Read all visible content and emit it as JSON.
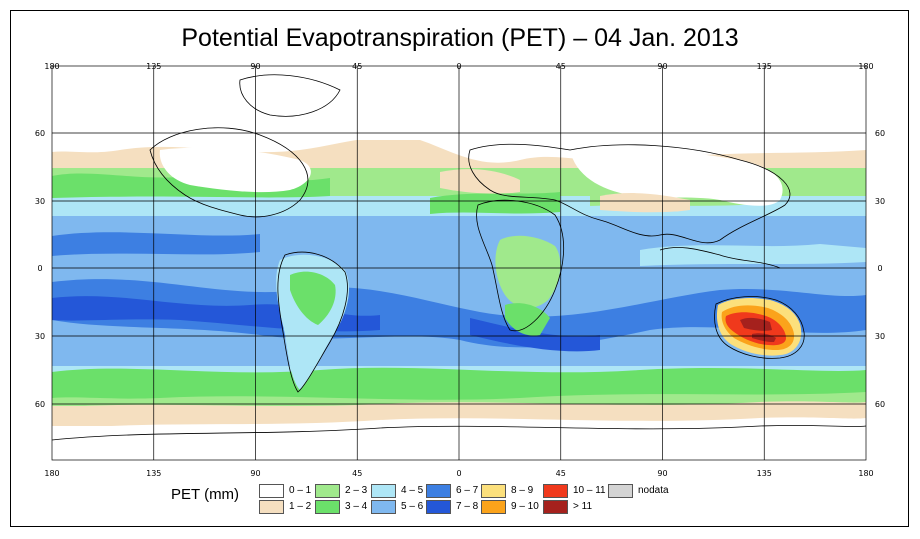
{
  "title": "Potential Evapotranspiration (PET) – 04 Jan. 2013",
  "legend": {
    "title": "PET (mm)",
    "items": [
      {
        "label": "0 – 1",
        "color": "#ffffff"
      },
      {
        "label": "1 – 2",
        "color": "#f5dfc0"
      },
      {
        "label": "2 – 3",
        "color": "#a0e98c"
      },
      {
        "label": "3 – 4",
        "color": "#6be06a"
      },
      {
        "label": "4 – 5",
        "color": "#aee6f6"
      },
      {
        "label": "5 – 6",
        "color": "#7fb8ef"
      },
      {
        "label": "6 – 7",
        "color": "#3d7fe2"
      },
      {
        "label": "7 – 8",
        "color": "#2457d8"
      },
      {
        "label": "8 – 9",
        "color": "#fce07c"
      },
      {
        "label": "9 – 10",
        "color": "#fba31b"
      },
      {
        "label": "10 – 11",
        "color": "#f0391c"
      },
      {
        "label": "> 11",
        "color": "#a5211d"
      },
      {
        "label": "nodata",
        "color": "#d4d4d4"
      }
    ]
  },
  "map": {
    "lon_ticks": [
      "180",
      "135",
      "90",
      "45",
      "0",
      "45",
      "90",
      "135",
      "180"
    ],
    "lat_ticks_left": [
      "60",
      "30",
      "0",
      "30",
      "60"
    ],
    "lat_ticks_right": [
      "60",
      "30",
      "0",
      "30",
      "60"
    ]
  }
}
